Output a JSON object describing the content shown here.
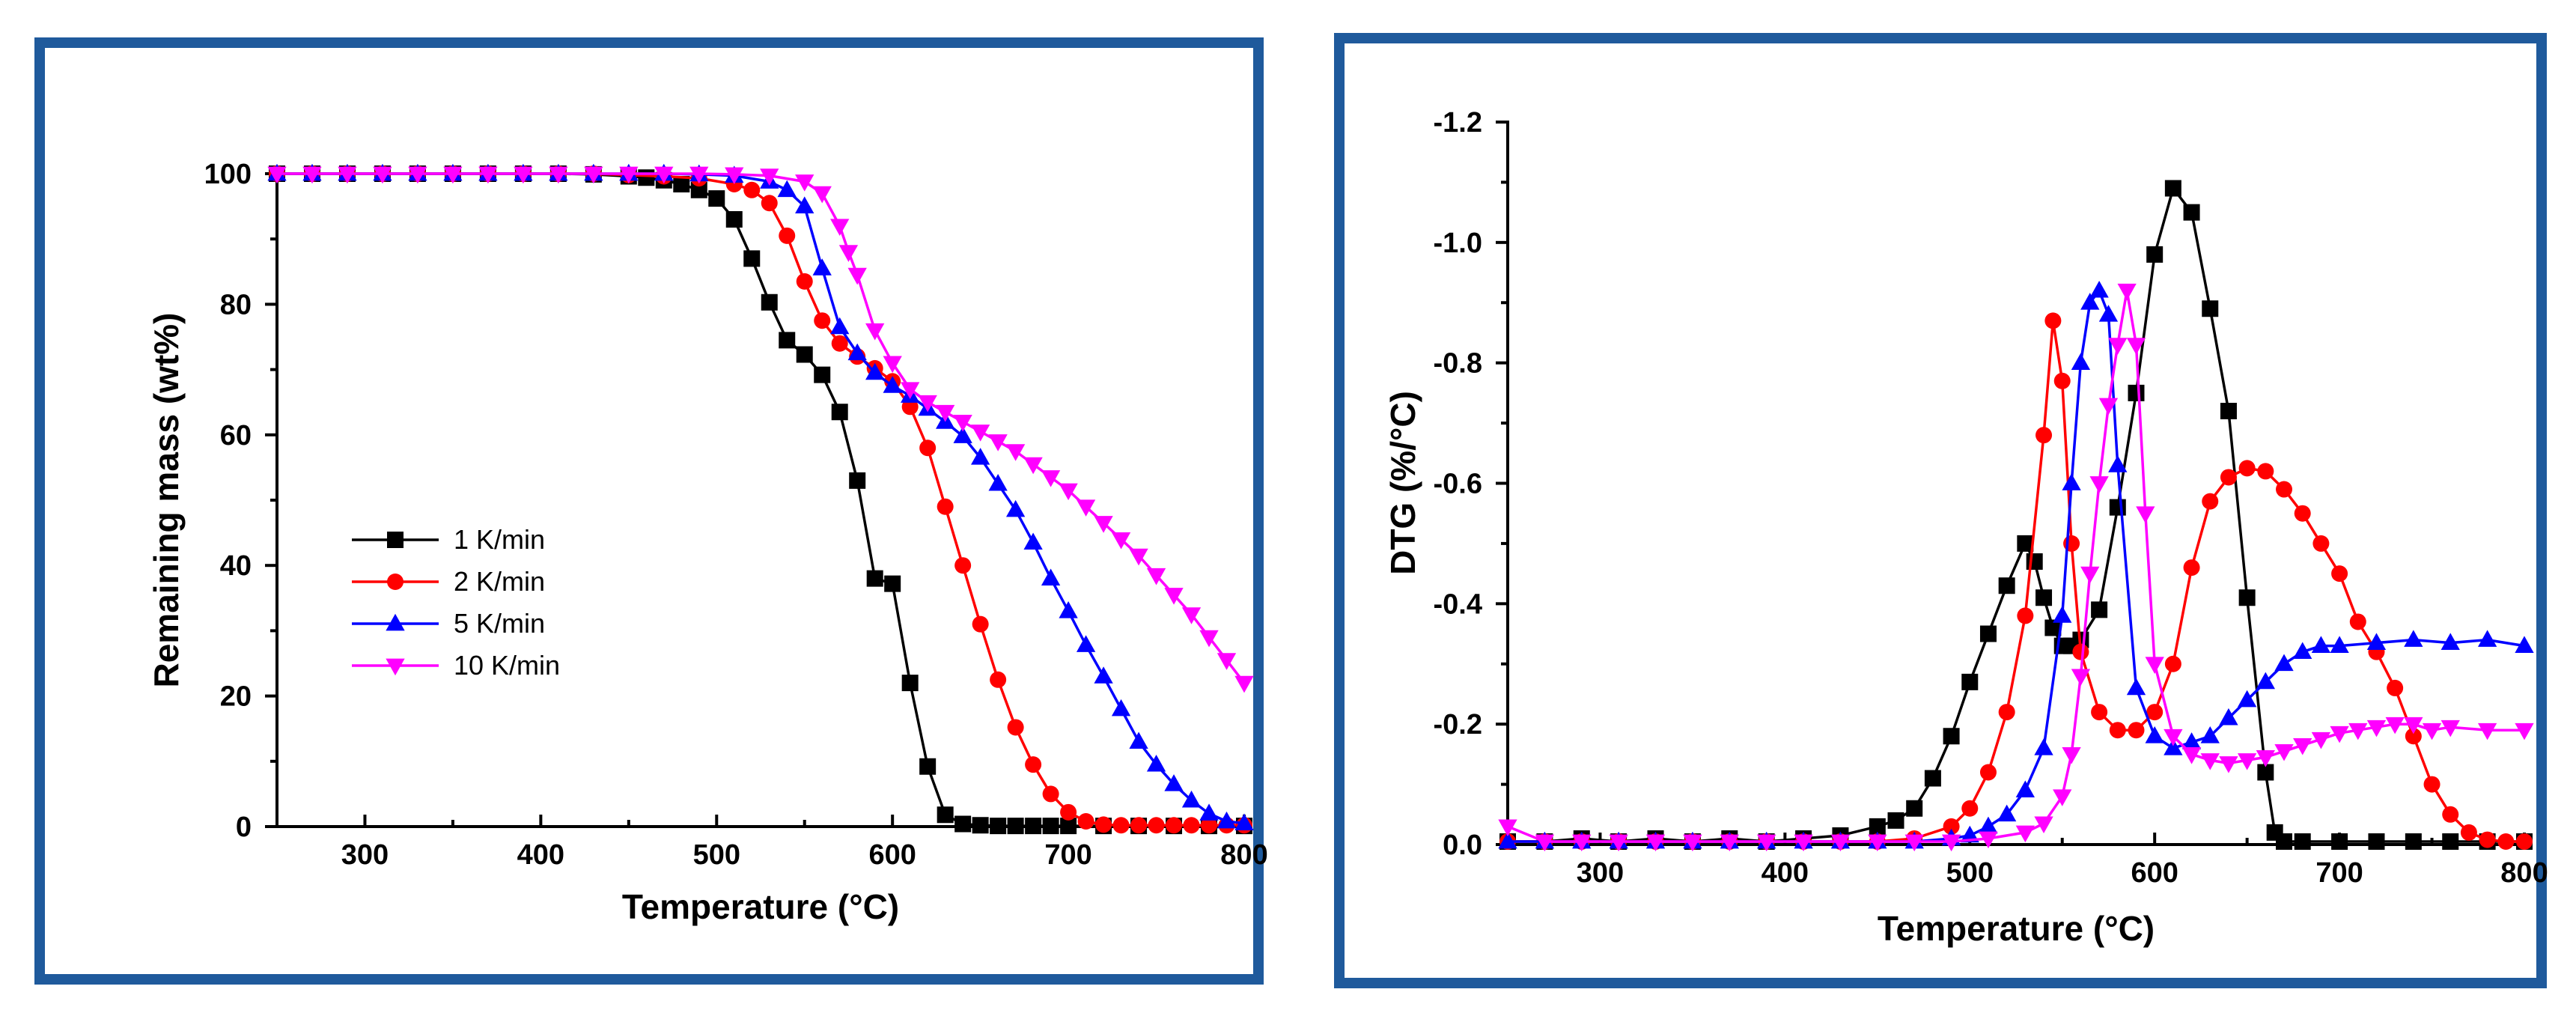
{
  "colors": {
    "frame": "#1f5a9c",
    "series": [
      "#000000",
      "#ff0000",
      "#0000ff",
      "#ff00ff"
    ]
  },
  "chart_data": [
    {
      "type": "line",
      "title": "",
      "xlabel": "Temperature (°C)",
      "ylabel": "Remaining mass (wt%)",
      "xlim": [
        250,
        800
      ],
      "ylim": [
        0,
        100
      ],
      "xticks": [
        300,
        400,
        500,
        600,
        700,
        800
      ],
      "yticks": [
        0,
        20,
        40,
        60,
        80,
        100
      ],
      "legend_position": "left-center",
      "series": [
        {
          "name": "1 K/min",
          "marker": "square",
          "x": [
            250,
            270,
            290,
            310,
            330,
            350,
            370,
            390,
            410,
            430,
            450,
            460,
            470,
            480,
            490,
            500,
            510,
            520,
            530,
            540,
            550,
            560,
            570,
            580,
            590,
            600,
            610,
            620,
            630,
            640,
            650,
            660,
            670,
            680,
            690,
            700,
            720,
            740,
            760,
            780,
            800
          ],
          "y": [
            100,
            100,
            100,
            100,
            100,
            100,
            100,
            100,
            100,
            99.9,
            99.6,
            99.4,
            99.0,
            98.4,
            97.5,
            96.2,
            93.0,
            87.0,
            80.3,
            74.5,
            72.3,
            69.2,
            63.5,
            53.0,
            38.0,
            37.2,
            22.0,
            9.2,
            1.8,
            0.4,
            0.2,
            0.1,
            0.1,
            0.1,
            0.1,
            0.1,
            0.1,
            0.1,
            0.1,
            0.1,
            0.1
          ]
        },
        {
          "name": "2 K/min",
          "marker": "circle",
          "x": [
            250,
            270,
            290,
            310,
            330,
            350,
            370,
            390,
            410,
            430,
            450,
            470,
            490,
            510,
            520,
            530,
            540,
            550,
            560,
            570,
            580,
            590,
            600,
            610,
            620,
            630,
            640,
            650,
            660,
            670,
            680,
            690,
            700,
            710,
            720,
            730,
            740,
            750,
            760,
            770,
            780,
            790,
            800
          ],
          "y": [
            100,
            100,
            100,
            100,
            100,
            100,
            100,
            100,
            100,
            100,
            99.8,
            99.6,
            99.3,
            98.4,
            97.5,
            95.5,
            90.5,
            83.5,
            77.5,
            74.0,
            72.0,
            70.2,
            68.2,
            64.3,
            58.0,
            49.0,
            40.0,
            31.0,
            22.5,
            15.2,
            9.5,
            5.0,
            2.2,
            0.8,
            0.3,
            0.2,
            0.2,
            0.2,
            0.2,
            0.2,
            0.2,
            0.2,
            0.2
          ]
        },
        {
          "name": "5 K/min",
          "marker": "triangle-up",
          "x": [
            250,
            270,
            290,
            310,
            330,
            350,
            370,
            390,
            410,
            430,
            450,
            470,
            490,
            510,
            530,
            540,
            550,
            560,
            570,
            580,
            590,
            600,
            610,
            620,
            630,
            640,
            650,
            660,
            670,
            680,
            690,
            700,
            710,
            720,
            730,
            740,
            750,
            760,
            770,
            780,
            790,
            800
          ],
          "y": [
            100,
            100,
            100,
            100,
            100,
            100,
            100,
            100,
            100,
            100,
            100,
            100,
            99.9,
            99.7,
            98.8,
            97.5,
            95.0,
            85.5,
            76.5,
            72.5,
            69.5,
            67.5,
            66.0,
            64.0,
            62.0,
            59.8,
            56.5,
            52.5,
            48.5,
            43.5,
            38.0,
            33.0,
            27.8,
            23.0,
            18.0,
            13.0,
            9.5,
            6.5,
            4.0,
            2.0,
            0.8,
            0.5
          ]
        },
        {
          "name": "10 K/min",
          "marker": "triangle-down",
          "x": [
            250,
            270,
            290,
            310,
            330,
            350,
            370,
            390,
            410,
            430,
            450,
            470,
            490,
            510,
            530,
            550,
            560,
            570,
            575,
            580,
            590,
            600,
            610,
            620,
            630,
            640,
            650,
            660,
            670,
            680,
            690,
            700,
            710,
            720,
            730,
            740,
            750,
            760,
            770,
            780,
            790,
            800
          ],
          "y": [
            100,
            100,
            100,
            100,
            100,
            100,
            100,
            100,
            100,
            100,
            100,
            100,
            100,
            99.9,
            99.7,
            98.8,
            97.0,
            92.0,
            88.0,
            84.5,
            76.0,
            71.0,
            67.0,
            65.0,
            63.5,
            62.0,
            60.5,
            59.0,
            57.5,
            55.5,
            53.5,
            51.5,
            49.0,
            46.5,
            44.0,
            41.5,
            38.5,
            35.5,
            32.5,
            29.0,
            25.5,
            22.0
          ]
        }
      ]
    },
    {
      "type": "line",
      "title": "",
      "xlabel": "Temperature (°C)",
      "ylabel": "DTG (%/°C)",
      "xlim": [
        250,
        800
      ],
      "ylim": [
        0,
        -1.2
      ],
      "y_inverted": true,
      "xticks": [
        300,
        400,
        500,
        600,
        700,
        800
      ],
      "yticks": [
        0.0,
        -0.2,
        -0.4,
        -0.6,
        -0.8,
        -1.0,
        -1.2
      ],
      "ytick_labels": [
        "0.0",
        "-0.2",
        "-0.4",
        "-0.6",
        "-0.8",
        "-1.0",
        "-1.2"
      ],
      "series": [
        {
          "name": "1 K/min",
          "marker": "square",
          "x": [
            250,
            270,
            290,
            310,
            330,
            350,
            370,
            390,
            410,
            430,
            450,
            460,
            470,
            480,
            490,
            500,
            510,
            520,
            530,
            535,
            540,
            545,
            550,
            555,
            560,
            570,
            580,
            590,
            600,
            610,
            620,
            630,
            640,
            650,
            660,
            665,
            670,
            680,
            700,
            720,
            740,
            760,
            780,
            800
          ],
          "y": [
            -0.005,
            -0.005,
            -0.01,
            -0.005,
            -0.01,
            -0.005,
            -0.01,
            -0.005,
            -0.01,
            -0.015,
            -0.03,
            -0.04,
            -0.06,
            -0.11,
            -0.18,
            -0.27,
            -0.35,
            -0.43,
            -0.5,
            -0.47,
            -0.41,
            -0.36,
            -0.33,
            -0.33,
            -0.34,
            -0.39,
            -0.56,
            -0.75,
            -0.98,
            -1.09,
            -1.05,
            -0.89,
            -0.72,
            -0.41,
            -0.12,
            -0.02,
            -0.005,
            -0.005,
            -0.005,
            -0.005,
            -0.005,
            -0.005,
            -0.005,
            -0.005
          ]
        },
        {
          "name": "2 K/min",
          "marker": "circle",
          "x": [
            250,
            270,
            290,
            310,
            330,
            350,
            370,
            390,
            410,
            430,
            450,
            470,
            490,
            500,
            510,
            520,
            530,
            540,
            545,
            550,
            555,
            560,
            570,
            580,
            590,
            600,
            610,
            620,
            630,
            640,
            650,
            660,
            670,
            680,
            690,
            700,
            710,
            720,
            730,
            740,
            750,
            760,
            770,
            780,
            790,
            800
          ],
          "y": [
            -0.005,
            -0.005,
            -0.005,
            -0.005,
            -0.005,
            -0.005,
            -0.005,
            -0.005,
            -0.005,
            -0.005,
            -0.005,
            -0.01,
            -0.03,
            -0.06,
            -0.12,
            -0.22,
            -0.38,
            -0.68,
            -0.87,
            -0.77,
            -0.5,
            -0.32,
            -0.22,
            -0.19,
            -0.19,
            -0.22,
            -0.3,
            -0.46,
            -0.57,
            -0.61,
            -0.625,
            -0.62,
            -0.59,
            -0.55,
            -0.5,
            -0.45,
            -0.37,
            -0.32,
            -0.26,
            -0.18,
            -0.1,
            -0.05,
            -0.02,
            -0.008,
            -0.005,
            -0.005
          ]
        },
        {
          "name": "5 K/min",
          "marker": "triangle-up",
          "x": [
            250,
            270,
            290,
            310,
            330,
            350,
            370,
            390,
            410,
            430,
            450,
            470,
            490,
            500,
            510,
            520,
            530,
            540,
            550,
            555,
            560,
            565,
            570,
            575,
            580,
            590,
            600,
            610,
            620,
            630,
            640,
            650,
            660,
            670,
            680,
            690,
            700,
            720,
            740,
            760,
            780,
            800
          ],
          "y": [
            -0.005,
            -0.005,
            -0.005,
            -0.005,
            -0.005,
            -0.005,
            -0.005,
            -0.005,
            -0.005,
            -0.005,
            -0.005,
            -0.005,
            -0.01,
            -0.015,
            -0.03,
            -0.05,
            -0.09,
            -0.16,
            -0.38,
            -0.6,
            -0.8,
            -0.9,
            -0.92,
            -0.88,
            -0.63,
            -0.26,
            -0.18,
            -0.16,
            -0.17,
            -0.18,
            -0.21,
            -0.24,
            -0.27,
            -0.3,
            -0.32,
            -0.33,
            -0.33,
            -0.335,
            -0.34,
            -0.335,
            -0.34,
            -0.33
          ]
        },
        {
          "name": "10 K/min",
          "marker": "triangle-down",
          "x": [
            250,
            270,
            290,
            310,
            330,
            350,
            370,
            390,
            410,
            430,
            450,
            470,
            490,
            510,
            530,
            540,
            550,
            555,
            560,
            565,
            570,
            575,
            580,
            585,
            590,
            595,
            600,
            610,
            620,
            630,
            640,
            650,
            660,
            670,
            680,
            690,
            700,
            710,
            720,
            730,
            740,
            750,
            760,
            780,
            800
          ],
          "y": [
            -0.03,
            -0.005,
            -0.005,
            -0.005,
            -0.005,
            -0.005,
            -0.005,
            -0.005,
            -0.005,
            -0.005,
            -0.005,
            -0.005,
            -0.005,
            -0.01,
            -0.02,
            -0.035,
            -0.08,
            -0.15,
            -0.28,
            -0.45,
            -0.6,
            -0.73,
            -0.83,
            -0.92,
            -0.83,
            -0.55,
            -0.3,
            -0.18,
            -0.15,
            -0.14,
            -0.135,
            -0.14,
            -0.145,
            -0.155,
            -0.165,
            -0.175,
            -0.185,
            -0.19,
            -0.195,
            -0.2,
            -0.2,
            -0.19,
            -0.195,
            -0.19,
            -0.19
          ]
        }
      ]
    }
  ]
}
